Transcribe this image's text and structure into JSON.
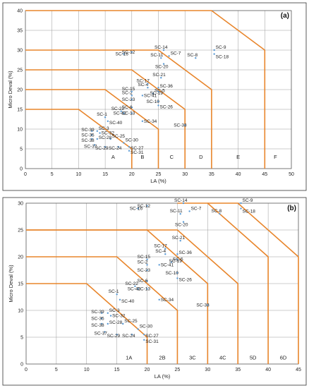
{
  "chart_data": [
    {
      "type": "scatter",
      "panel_label": "(a)",
      "xlabel": "LA (%)",
      "ylabel": "Micro Deval (%)",
      "xlim": [
        0,
        50
      ],
      "ylim": [
        0,
        40
      ],
      "xticks": [
        0,
        5,
        10,
        15,
        20,
        25,
        30,
        35,
        40,
        45,
        50
      ],
      "yticks": [
        0,
        5,
        10,
        15,
        20,
        25,
        30,
        35,
        40
      ],
      "grid": true,
      "zone_labels": [
        {
          "text": "A",
          "x": 16.5,
          "y": 2.5
        },
        {
          "text": "B",
          "x": 22.0,
          "y": 2.5
        },
        {
          "text": "C",
          "x": 27.5,
          "y": 2.5
        },
        {
          "text": "D",
          "x": 33.0,
          "y": 2.5
        },
        {
          "text": "E",
          "x": 40.0,
          "y": 2.5
        },
        {
          "text": "F",
          "x": 47.0,
          "y": 2.5
        }
      ],
      "boundaries": [
        [
          [
            0,
            15
          ],
          [
            10,
            15
          ],
          [
            20,
            5
          ],
          [
            20,
            0
          ]
        ],
        [
          [
            0,
            20
          ],
          [
            15,
            20
          ],
          [
            25,
            10
          ],
          [
            25,
            0
          ]
        ],
        [
          [
            0,
            25
          ],
          [
            20,
            25
          ],
          [
            30,
            15
          ],
          [
            30,
            0
          ]
        ],
        [
          [
            0,
            30
          ],
          [
            25,
            30
          ],
          [
            35,
            20
          ],
          [
            35,
            0
          ]
        ],
        [
          [
            0,
            40
          ],
          [
            35,
            40
          ],
          [
            45,
            30
          ],
          [
            45,
            0
          ]
        ]
      ]
    },
    {
      "type": "scatter",
      "panel_label": "(b)",
      "xlabel": "LA (%)",
      "ylabel": "Micro Deval (%)",
      "xlim": [
        0,
        45
      ],
      "ylim": [
        0,
        30
      ],
      "xticks": [
        0,
        5,
        10,
        15,
        20,
        25,
        30,
        35,
        40,
        45
      ],
      "yticks": [
        0,
        5,
        10,
        15,
        20,
        25,
        30
      ],
      "grid": true,
      "zone_labels": [
        {
          "text": "1A",
          "x": 17.0,
          "y": 0.6
        },
        {
          "text": "2B",
          "x": 22.5,
          "y": 0.6
        },
        {
          "text": "3C",
          "x": 27.5,
          "y": 0.6
        },
        {
          "text": "4C",
          "x": 32.5,
          "y": 0.6
        },
        {
          "text": "5D",
          "x": 37.5,
          "y": 0.6
        },
        {
          "text": "6D",
          "x": 42.5,
          "y": 0.6
        }
      ],
      "boundaries": [
        [
          [
            0,
            15
          ],
          [
            10,
            15
          ],
          [
            20,
            5
          ],
          [
            20,
            0
          ]
        ],
        [
          [
            0,
            20
          ],
          [
            15,
            20
          ],
          [
            25,
            10
          ],
          [
            25,
            0
          ]
        ],
        [
          [
            0,
            25
          ],
          [
            20,
            25
          ],
          [
            30,
            15
          ],
          [
            30,
            0
          ]
        ],
        [
          [
            0,
            25
          ],
          [
            25,
            25
          ],
          [
            35,
            15
          ],
          [
            35,
            0
          ]
        ],
        [
          [
            25,
            30
          ],
          [
            30,
            30
          ],
          [
            40,
            20
          ],
          [
            40,
            0
          ]
        ],
        [
          [
            30,
            30
          ],
          [
            35,
            30
          ],
          [
            45,
            20
          ],
          [
            45,
            0
          ]
        ]
      ]
    }
  ],
  "points": [
    {
      "label": "SC-1",
      "x": 15.0,
      "y": 13.0
    },
    {
      "label": "SC-2",
      "x": 20.0,
      "y": 18.5
    },
    {
      "label": "SC-3",
      "x": 13.5,
      "y": 9.5
    },
    {
      "label": "SC-4",
      "x": 23.0,
      "y": 20.5
    },
    {
      "label": "SC-5",
      "x": 24.0,
      "y": 19.0
    },
    {
      "label": "SC-6",
      "x": 20.0,
      "y": 15.5
    },
    {
      "label": "SC-7",
      "x": 27.0,
      "y": 28.5
    },
    {
      "label": "SC-8",
      "x": 32.0,
      "y": 28.0
    },
    {
      "label": "SC-9",
      "x": 35.5,
      "y": 30.0
    },
    {
      "label": "SC-10",
      "x": 25.0,
      "y": 17.0
    },
    {
      "label": "SC-11",
      "x": 25.5,
      "y": 28.0
    },
    {
      "label": "SC-12",
      "x": 20.0,
      "y": 29.5
    },
    {
      "label": "SC-13",
      "x": 20.0,
      "y": 14.0
    },
    {
      "label": "SC-14",
      "x": 26.0,
      "y": 30.0
    },
    {
      "label": "SC-15",
      "x": 20.0,
      "y": 19.5
    },
    {
      "label": "SC-16",
      "x": 18.5,
      "y": 29.0
    },
    {
      "label": "SC-17",
      "x": 23.0,
      "y": 21.5
    },
    {
      "label": "SC-18",
      "x": 35.5,
      "y": 29.0
    },
    {
      "label": "SC-19",
      "x": 25.0,
      "y": 19.5
    },
    {
      "label": "SC-20",
      "x": 26.0,
      "y": 26.5
    },
    {
      "label": "SC-21",
      "x": 25.5,
      "y": 23.0
    },
    {
      "label": "SC-22",
      "x": 18.0,
      "y": 14.5
    },
    {
      "label": "SC-23",
      "x": 20.0,
      "y": 17.5
    },
    {
      "label": "SC-24",
      "x": 17.5,
      "y": 5.5
    },
    {
      "label": "SC-25",
      "x": 16.0,
      "y": 7.5
    },
    {
      "label": "SC-26",
      "x": 25.0,
      "y": 16.0
    },
    {
      "label": "SC-27",
      "x": 19.5,
      "y": 5.5
    },
    {
      "label": "SC-28",
      "x": 13.5,
      "y": 7.5
    },
    {
      "label": "SC-29",
      "x": 15.0,
      "y": 5.5
    },
    {
      "label": "SC-30",
      "x": 18.5,
      "y": 6.5
    },
    {
      "label": "SC-31",
      "x": 19.5,
      "y": 4.5
    },
    {
      "label": "SC-32",
      "x": 14.0,
      "y": 9.0
    },
    {
      "label": "SC-33",
      "x": 30.0,
      "y": 11.0
    },
    {
      "label": "SC-34",
      "x": 22.0,
      "y": 12.0
    },
    {
      "label": "SC-35",
      "x": 12.5,
      "y": 8.5
    },
    {
      "label": "SC-36",
      "x": 25.0,
      "y": 20.5
    },
    {
      "label": "SC-37",
      "x": 13.0,
      "y": 6.0
    },
    {
      "label": "SC-38",
      "x": 12.5,
      "y": 7.5
    },
    {
      "label": "SC-39",
      "x": 12.5,
      "y": 9.5
    },
    {
      "label": "SC-40",
      "x": 15.5,
      "y": 12.0
    },
    {
      "label": "SC-41",
      "x": 22.0,
      "y": 18.5
    },
    {
      "label": "SC-42",
      "x": 18.5,
      "y": 14.0
    }
  ],
  "style": {
    "boundary_color": "#E8852B",
    "grid_color": "#9a9a9a",
    "point_color": "#5B9BD5",
    "frame_color": "#333333"
  }
}
